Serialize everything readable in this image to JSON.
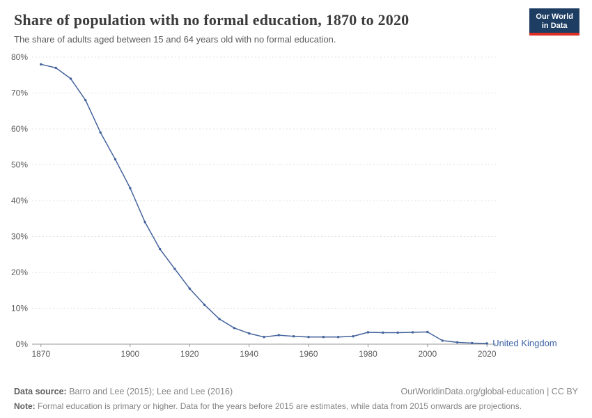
{
  "header": {
    "title": "Share of population with no formal education, 1870 to 2020",
    "subtitle": "The share of adults aged between 15 and 64 years old with no formal education.",
    "logo": {
      "line1": "Our World",
      "line2": "in Data"
    }
  },
  "chart_data": {
    "type": "line",
    "title": "Share of population with no formal education, 1870 to 2020",
    "xlabel": "",
    "ylabel": "",
    "ylim": [
      0,
      80
    ],
    "xlim": [
      1867,
      2023
    ],
    "yticks": [
      0,
      10,
      20,
      30,
      40,
      50,
      60,
      70,
      80
    ],
    "ytick_suffix": "%",
    "xticks": [
      1870,
      1900,
      1920,
      1940,
      1960,
      1980,
      2000,
      2020
    ],
    "grid": true,
    "legend_position": "end-of-line",
    "colors": {
      "line": "#44639c",
      "label": "#3a62a5",
      "grid": "#e2e2e2",
      "axis": "#999999",
      "tick_text": "#5b5b5b"
    },
    "series": [
      {
        "name": "United Kingdom",
        "x": [
          1870,
          1875,
          1880,
          1885,
          1890,
          1895,
          1900,
          1905,
          1910,
          1915,
          1920,
          1925,
          1930,
          1935,
          1940,
          1945,
          1950,
          1955,
          1960,
          1965,
          1970,
          1975,
          1980,
          1985,
          1990,
          1995,
          2000,
          2005,
          2010,
          2015,
          2020
        ],
        "values": [
          78,
          77,
          74,
          68,
          59,
          51.5,
          43.5,
          34,
          26.5,
          21,
          15.5,
          11,
          7,
          4.5,
          3,
          2,
          2.5,
          2.2,
          2,
          2,
          2,
          2.2,
          3.3,
          3.2,
          3.2,
          3.3,
          3.4,
          1,
          0.5,
          0.3,
          0.2
        ]
      }
    ]
  },
  "footer": {
    "datasource_label": "Data source:",
    "datasource": "Barro and Lee (2015); Lee and Lee (2016)",
    "rights": "OurWorldinData.org/global-education | CC BY",
    "note_label": "Note:",
    "note": "Formal education is primary or higher. Data for the years before 2015 are estimates, while data from 2015 onwards are projections."
  }
}
